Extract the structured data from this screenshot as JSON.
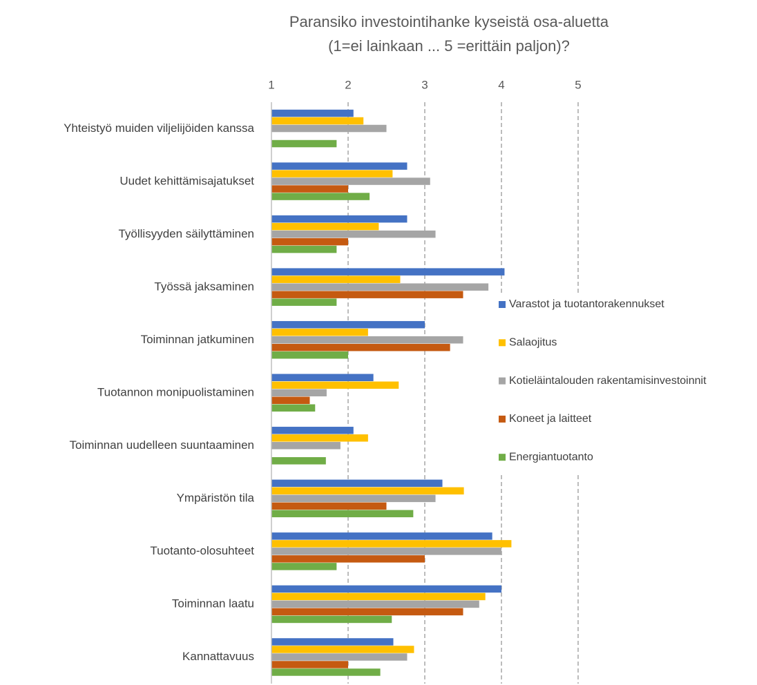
{
  "chart_data": {
    "type": "bar",
    "orientation": "horizontal",
    "title": [
      "Paransiko investointihanke kyseistä osa-aluetta",
      "(1=ei lainkaan ... 5 =erittäin paljon)?"
    ],
    "categories": [
      "Yhteistyö muiden viljelijöiden kanssa",
      "Uudet kehittämisajatukset",
      "Työllisyyden säilyttäminen",
      "Työssä jaksaminen",
      "Toiminnan jatkuminen",
      "Tuotannon monipuolistaminen",
      "Toiminnan uudelleen suuntaaminen",
      "Ympäristön tila",
      "Tuotanto-olosuhteet",
      "Toiminnan laatu",
      "Kannattavuus"
    ],
    "series": [
      {
        "name": "Varastot ja tuotantorakennukset",
        "color": "#4472c4",
        "values": [
          2.07,
          2.77,
          2.77,
          4.04,
          3.0,
          2.33,
          2.07,
          3.23,
          3.88,
          4.0,
          2.59
        ]
      },
      {
        "name": "Salaojitus",
        "color": "#ffc000",
        "values": [
          2.2,
          2.58,
          2.4,
          2.68,
          2.26,
          2.66,
          2.26,
          3.51,
          4.13,
          3.79,
          2.86
        ]
      },
      {
        "name": "Kotieläintalouden rakentamisinvestoinnit",
        "color": "#a5a5a5",
        "values": [
          2.5,
          3.07,
          3.14,
          3.83,
          3.5,
          1.72,
          1.9,
          3.14,
          4.0,
          3.71,
          2.77
        ]
      },
      {
        "name": "Koneet ja laitteet",
        "color": "#c55a11",
        "values": [
          null,
          2.0,
          2.0,
          3.5,
          3.33,
          1.5,
          null,
          2.5,
          3.0,
          3.5,
          2.0
        ]
      },
      {
        "name": "Energiantuotanto",
        "color": "#70ad47",
        "values": [
          1.85,
          2.28,
          1.85,
          1.85,
          2.0,
          1.57,
          1.71,
          2.85,
          1.85,
          2.57,
          2.42
        ]
      }
    ],
    "xlim": [
      1,
      5
    ],
    "xticks": [
      1,
      2,
      3,
      4,
      5
    ],
    "grid": true,
    "legend": "right"
  }
}
